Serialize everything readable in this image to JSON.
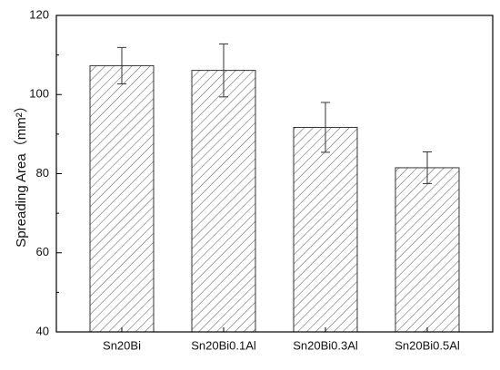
{
  "chart_data": {
    "type": "bar",
    "ylabel": "Spreading Area（mm²）",
    "categories": [
      "Sn20Bi",
      "Sn20Bi0.1Al",
      "Sn20Bi0.3Al",
      "Sn20Bi0.5Al"
    ],
    "values": [
      107.3,
      106.1,
      91.7,
      81.5
    ],
    "errors": [
      4.6,
      6.7,
      6.3,
      4.0
    ],
    "color": "#555555",
    "ylim": [
      40,
      120
    ],
    "yticks": [
      40,
      60,
      80,
      100,
      120
    ]
  }
}
